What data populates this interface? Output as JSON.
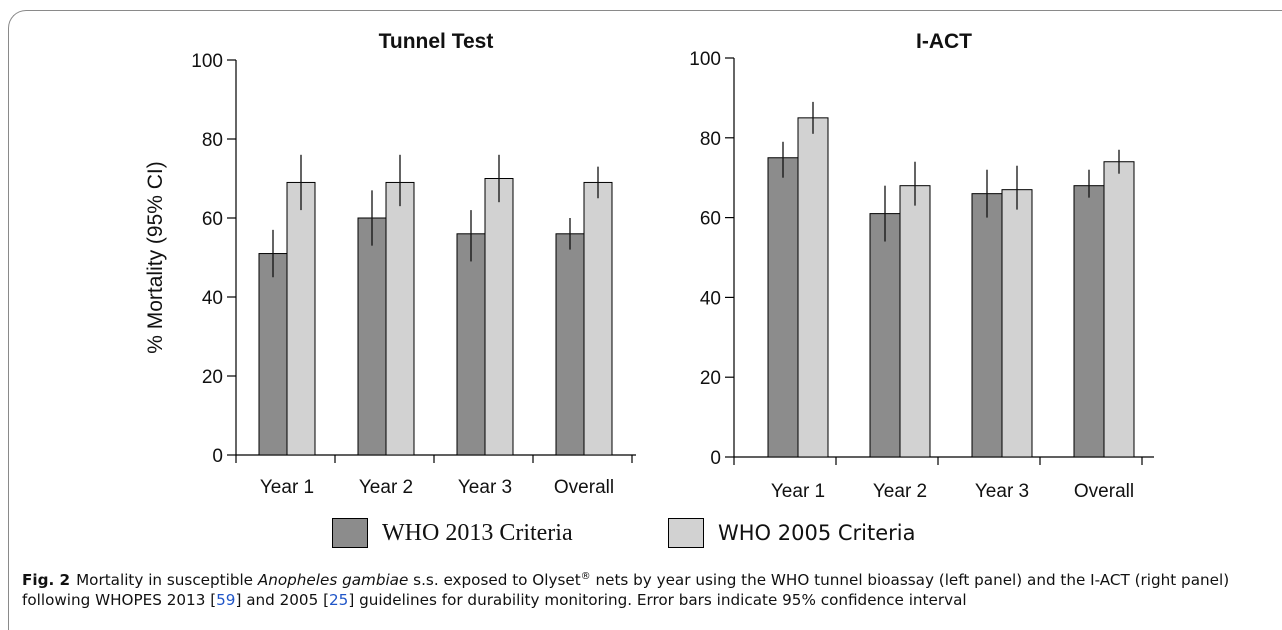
{
  "chart_data": [
    {
      "type": "bar",
      "title": "Tunnel Test",
      "ylabel": "% Mortality (95% CI)",
      "xlabel": "",
      "ylim": [
        0,
        100
      ],
      "yticks": [
        0,
        20,
        40,
        60,
        80,
        100
      ],
      "categories": [
        "Year 1",
        "Year 2",
        "Year 3",
        "Overall"
      ],
      "series": [
        {
          "name": "WHO 2013 Criteria",
          "color": "#8c8c8c",
          "values": [
            51,
            60,
            56,
            56
          ],
          "ci_low": [
            45,
            53,
            49,
            52
          ],
          "ci_high": [
            57,
            67,
            62,
            60
          ]
        },
        {
          "name": "WHO 2005 Criteria",
          "color": "#d2d2d2",
          "values": [
            69,
            69,
            70,
            69
          ],
          "ci_low": [
            62,
            63,
            64,
            65
          ],
          "ci_high": [
            76,
            76,
            76,
            73
          ]
        }
      ],
      "grid": false
    },
    {
      "type": "bar",
      "title": "I-ACT",
      "ylabel": "",
      "xlabel": "",
      "ylim": [
        0,
        100
      ],
      "yticks": [
        0,
        20,
        40,
        60,
        80,
        100
      ],
      "categories": [
        "Year 1",
        "Year 2",
        "Year 3",
        "Overall"
      ],
      "series": [
        {
          "name": "WHO 2013 Criteria",
          "color": "#8c8c8c",
          "values": [
            75,
            61,
            66,
            68
          ],
          "ci_low": [
            70,
            54,
            60,
            65
          ],
          "ci_high": [
            79,
            68,
            72,
            72
          ]
        },
        {
          "name": "WHO 2005 Criteria",
          "color": "#d2d2d2",
          "values": [
            85,
            68,
            67,
            74
          ],
          "ci_low": [
            81,
            63,
            62,
            71
          ],
          "ci_high": [
            89,
            74,
            73,
            77
          ]
        }
      ],
      "grid": false
    }
  ],
  "legend": {
    "items": [
      {
        "label": "WHO 2013 Criteria",
        "color": "#8c8c8c"
      },
      {
        "label": "WHO 2005 Criteria",
        "color": "#d2d2d2"
      }
    ],
    "placement": "bottom"
  },
  "caption": {
    "fig_label": "Fig. 2",
    "t1": "Mortality in susceptible ",
    "t2": "Anopheles gambiae",
    "t3": " s.s. exposed to Olyset",
    "t4": "®",
    "t5": " nets by year using the WHO tunnel bioassay (left panel) and the I-ACT (right panel) following WHOPES 2013 [",
    "ref1": "59",
    "t6": "] and 2005 [",
    "ref2": "25",
    "t7": "] guidelines for durability monitoring. Error bars indicate 95% confidence interval"
  }
}
